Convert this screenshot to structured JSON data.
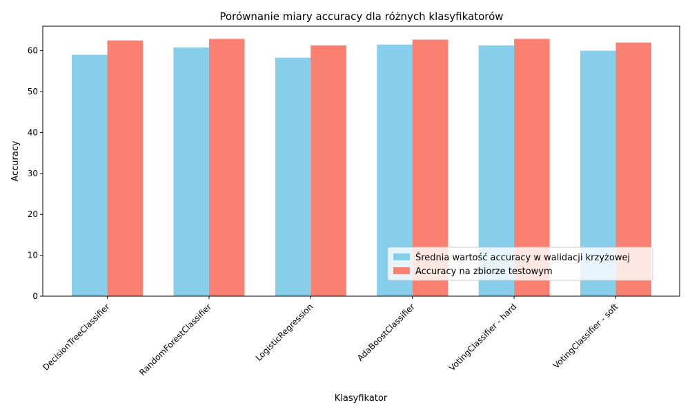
{
  "chart_data": {
    "type": "bar",
    "title": "Porównanie miary accuracy dla różnych klasyfikatorów",
    "xlabel": "Klasyfikator",
    "ylabel": "Accuracy",
    "categories": [
      "DecisionTreeClassifier",
      "RandomForestClassifier",
      "LogisticRegression",
      "AdaBoostClassifier",
      "VotingClassifier - hard",
      "VotingClassifier - soft"
    ],
    "series": [
      {
        "name": "Średnia wartość accuracy w walidacji krzyżowej",
        "color": "#87CEEB",
        "values": [
          59.0,
          60.8,
          58.3,
          61.5,
          61.3,
          60.0
        ]
      },
      {
        "name": "Accuracy na zbiorze testowym",
        "color": "#FA8072",
        "values": [
          62.5,
          62.9,
          61.3,
          62.7,
          62.9,
          62.0
        ]
      }
    ],
    "ylim": [
      0,
      66
    ],
    "yticks": [
      0,
      10,
      20,
      30,
      40,
      50,
      60
    ],
    "grid": false,
    "legend_position": "lower-right"
  }
}
